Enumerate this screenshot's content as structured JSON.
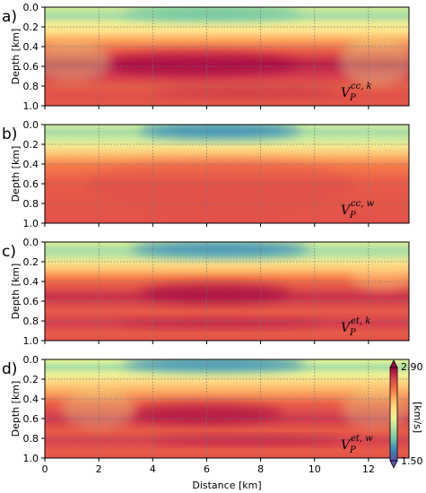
{
  "chart_data": {
    "type": "heatmap",
    "xlabel": "Distance [km]",
    "ylabel": "Depth [km]",
    "xlim": [
      0,
      13.5
    ],
    "ylim": [
      0,
      1.0
    ],
    "x_ticks": [
      "0",
      "2",
      "4",
      "6",
      "8",
      "10",
      "12"
    ],
    "y_ticks": [
      "0.0",
      "0.2",
      "0.4",
      "0.6",
      "0.8",
      "1.0"
    ],
    "grid": true,
    "colorbar": {
      "label": "[km/s]",
      "min": "1.50",
      "max": "2.90",
      "colormap": "Spectral_r",
      "colors": [
        "#5e4fa2",
        "#3288bd",
        "#66c2a5",
        "#abdda4",
        "#e6f598",
        "#fee08b",
        "#fdae61",
        "#f46d43",
        "#d53e4f",
        "#9e0142"
      ]
    },
    "panels": [
      {
        "letter": "a)",
        "label_base": "V",
        "label_sub": "P",
        "label_sup": "cc, k"
      },
      {
        "letter": "b)",
        "label_base": "V",
        "label_sub": "P",
        "label_sup": "cc, w"
      },
      {
        "letter": "c)",
        "label_base": "V",
        "label_sub": "P",
        "label_sup": "et, k"
      },
      {
        "letter": "d)",
        "label_base": "V",
        "label_sub": "P",
        "label_sup": "et, w"
      }
    ]
  }
}
